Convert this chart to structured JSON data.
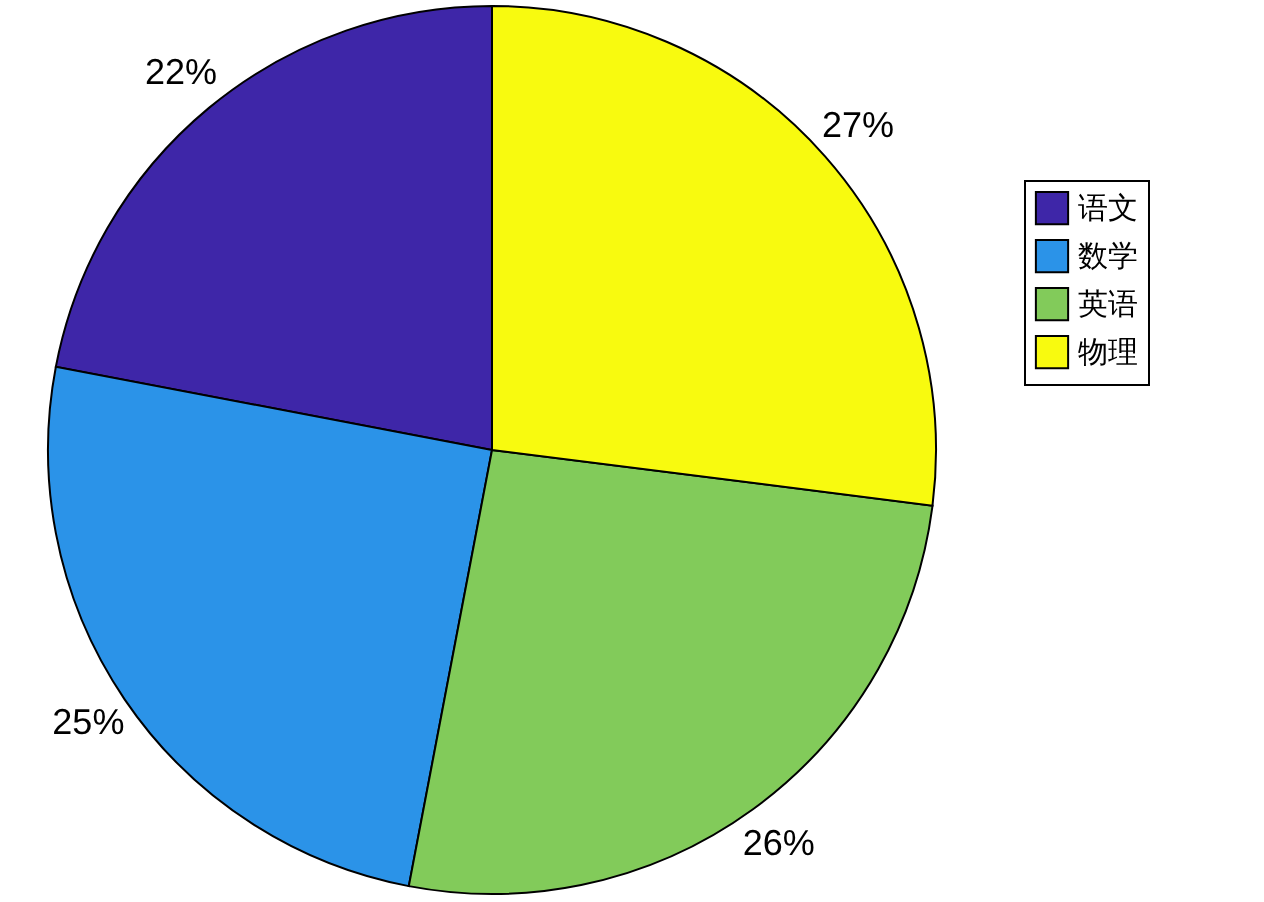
{
  "chart_data": {
    "type": "pie",
    "categories": [
      "语文",
      "数学",
      "英语",
      "物理"
    ],
    "values": [
      22,
      25,
      26,
      27
    ],
    "colors": [
      "#3e26a8",
      "#2b93e8",
      "#82cb5a",
      "#f8fa0f"
    ],
    "value_labels": [
      "22%",
      "25%",
      "26%",
      "27%"
    ],
    "legend": "right"
  }
}
